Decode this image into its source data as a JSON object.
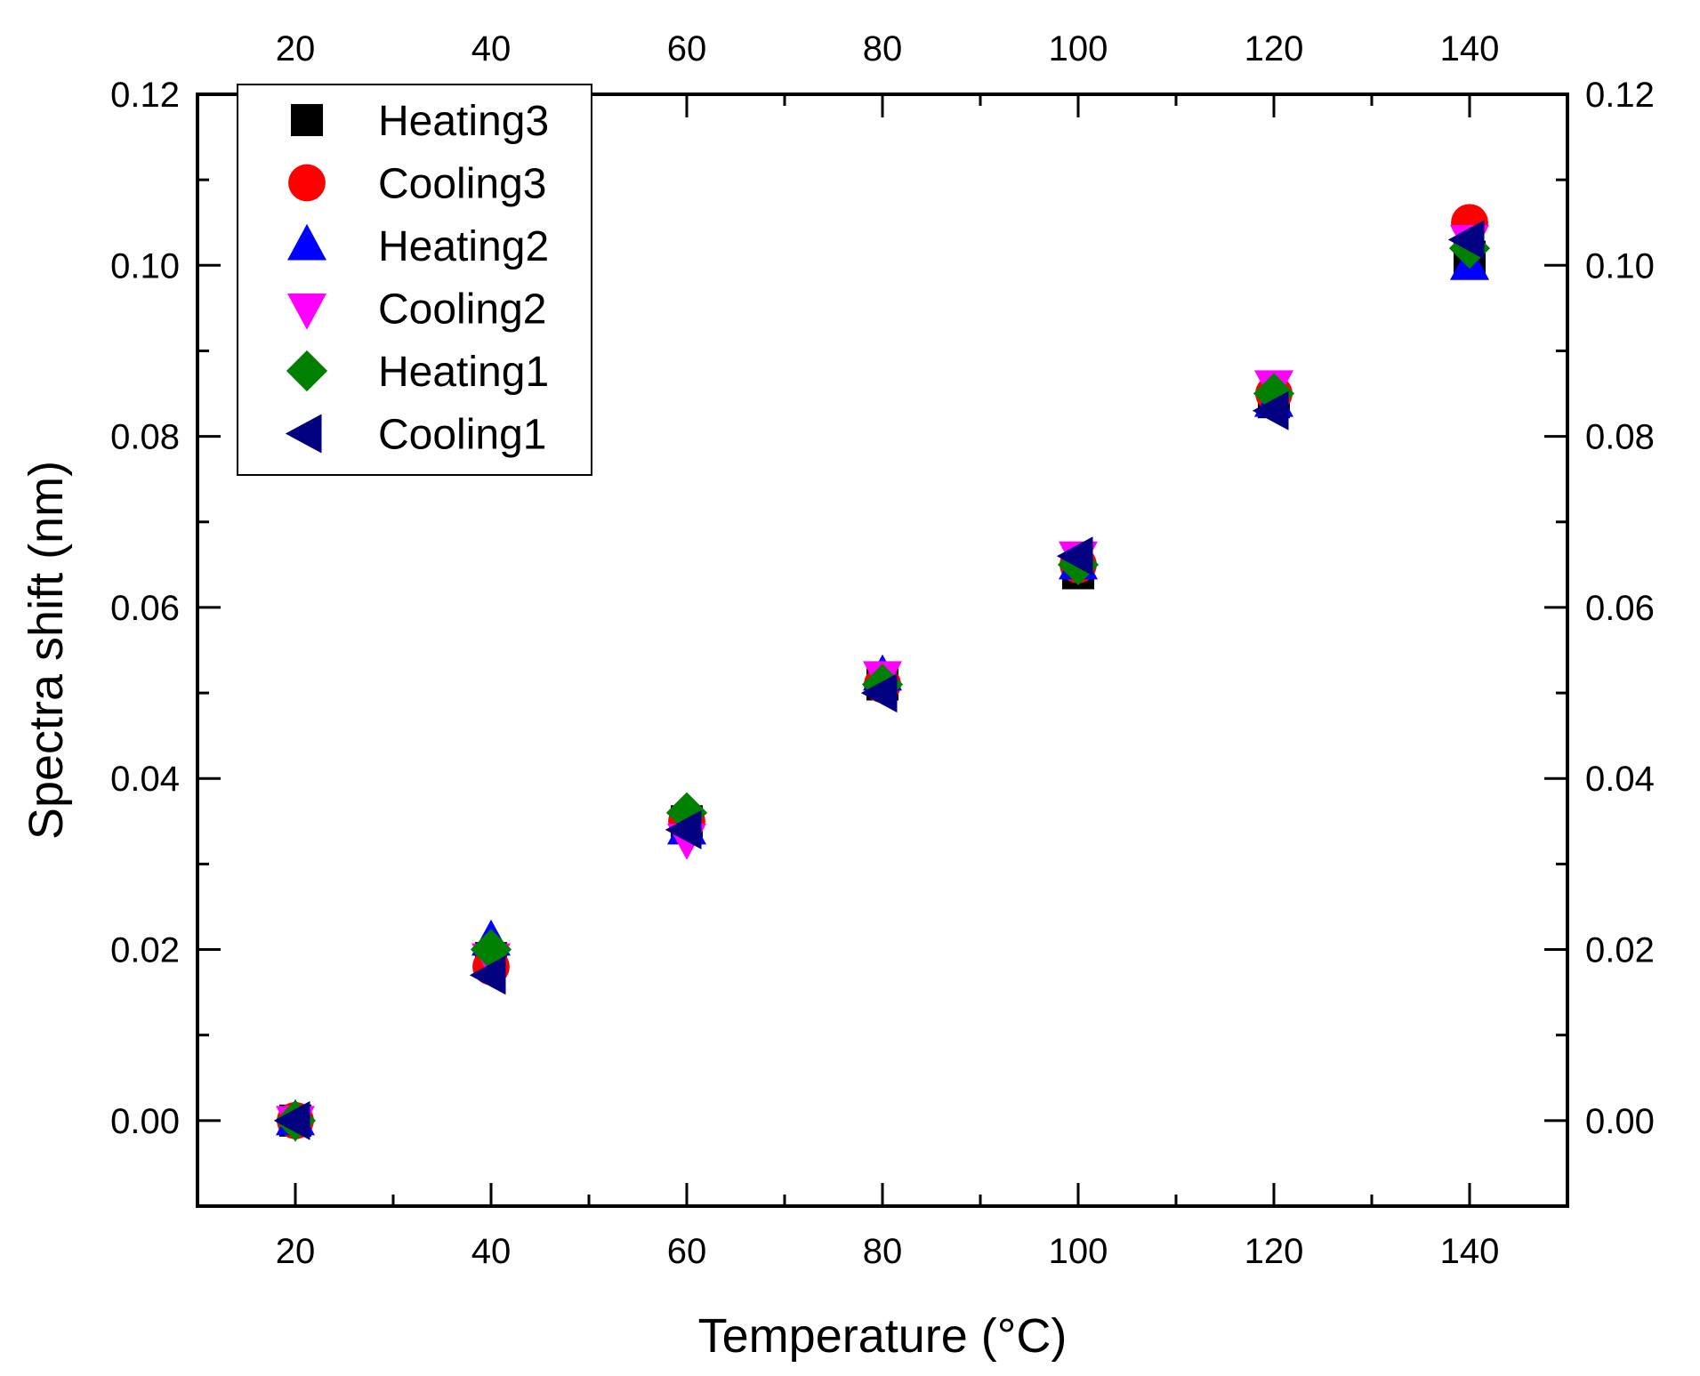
{
  "chart_data": {
    "type": "scatter",
    "title": "",
    "xlabel": "Temperature (°C)",
    "ylabel": "Spectra shift (nm)",
    "xlim": [
      10,
      150
    ],
    "ylim": [
      -0.01,
      0.12
    ],
    "x_ticks": [
      20,
      40,
      60,
      80,
      100,
      120,
      140
    ],
    "x_tick_labels": [
      "20",
      "40",
      "60",
      "80",
      "100",
      "120",
      "140"
    ],
    "y_ticks": [
      0,
      0.02,
      0.04,
      0.06,
      0.08,
      0.1,
      0.12
    ],
    "y_tick_labels": [
      "0.00",
      "0.02",
      "0.04",
      "0.06",
      "0.08",
      "0.10",
      "0.12"
    ],
    "grid": false,
    "legend_position": "top-left",
    "x": [
      20,
      40,
      60,
      80,
      100,
      120,
      140
    ],
    "series": [
      {
        "name": "Heating3",
        "marker": "square",
        "color": "#000000",
        "values": [
          0,
          0.019,
          0.035,
          0.051,
          0.064,
          0.084,
          0.101
        ]
      },
      {
        "name": "Cooling3",
        "marker": "circle",
        "color": "#ff0000",
        "values": [
          0,
          0.018,
          0.035,
          0.051,
          0.065,
          0.085,
          0.105
        ]
      },
      {
        "name": "Heating2",
        "marker": "triangle-up",
        "color": "#0000ff",
        "values": [
          0,
          0.021,
          0.034,
          0.052,
          0.065,
          0.084,
          0.1
        ]
      },
      {
        "name": "Cooling2",
        "marker": "triangle-down",
        "color": "#ff00ff",
        "values": [
          0,
          0.019,
          0.033,
          0.052,
          0.066,
          0.086,
          0.103
        ]
      },
      {
        "name": "Heating1",
        "marker": "diamond",
        "color": "#008000",
        "values": [
          0,
          0.02,
          0.036,
          0.051,
          0.065,
          0.085,
          0.102
        ]
      },
      {
        "name": "Cooling1",
        "marker": "triangle-left",
        "color": "#000080",
        "values": [
          0,
          0.017,
          0.034,
          0.05,
          0.066,
          0.083,
          0.103
        ]
      }
    ]
  }
}
